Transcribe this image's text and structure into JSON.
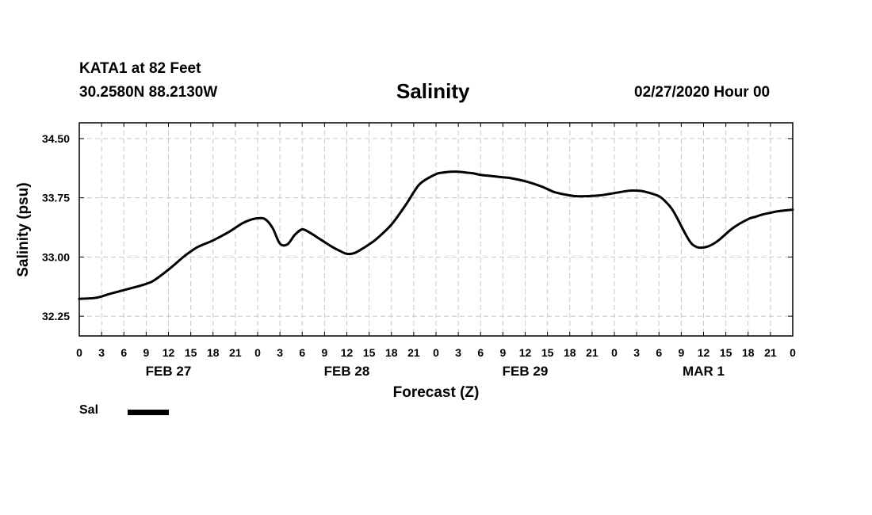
{
  "header": {
    "station": "KATA1 at 82 Feet",
    "coords": "30.2580N 88.2130W",
    "title": "Salinity",
    "issued": "02/27/2020 Hour 00"
  },
  "legend": {
    "label": "Sal",
    "color": "#000000"
  },
  "chart_data": {
    "type": "line",
    "title": "Salinity",
    "xlabel": "Forecast (Z)",
    "ylabel": "Salinity (psu)",
    "x_unit": "hours since 02/27/2020 00Z",
    "xlim": [
      0,
      96
    ],
    "ylim": [
      32.0,
      34.7
    ],
    "yticks": [
      32.25,
      33.0,
      33.75,
      34.5
    ],
    "ytick_labels": [
      "32.25",
      "33.00",
      "33.75",
      "34.50"
    ],
    "xticks": [
      0,
      3,
      6,
      9,
      12,
      15,
      18,
      21,
      24,
      27,
      30,
      33,
      36,
      39,
      42,
      45,
      48,
      51,
      54,
      57,
      60,
      63,
      66,
      69,
      72,
      75,
      78,
      81,
      84,
      87,
      90,
      93,
      96
    ],
    "xtick_labels": [
      "0",
      "3",
      "6",
      "9",
      "12",
      "15",
      "18",
      "21",
      "0",
      "3",
      "6",
      "9",
      "12",
      "15",
      "18",
      "21",
      "0",
      "3",
      "6",
      "9",
      "12",
      "15",
      "18",
      "21",
      "0",
      "3",
      "6",
      "9",
      "12",
      "15",
      "18",
      "21",
      "0"
    ],
    "day_labels": [
      {
        "x": 12,
        "label": "FEB 27"
      },
      {
        "x": 36,
        "label": "FEB 28"
      },
      {
        "x": 60,
        "label": "FEB 29"
      },
      {
        "x": 84,
        "label": "MAR 1"
      }
    ],
    "grid": true,
    "legend_position": "bottom-left",
    "series": [
      {
        "name": "Sal",
        "color": "#000000",
        "x": [
          0,
          2,
          3,
          4,
          6,
          8,
          9,
          10,
          12,
          14,
          15,
          16,
          18,
          20,
          21,
          22,
          23,
          24,
          25,
          26,
          27,
          28,
          29,
          30,
          31,
          32,
          33,
          34,
          35,
          36,
          37,
          38,
          39,
          40,
          42,
          44,
          45,
          46,
          48,
          49,
          50,
          51,
          52,
          53,
          54,
          55,
          56,
          57,
          58,
          60,
          62,
          63,
          64,
          66,
          67,
          68,
          70,
          72,
          74,
          75,
          76,
          78,
          79,
          80,
          82,
          83,
          84,
          85,
          86,
          88,
          90,
          91,
          92,
          93,
          94,
          96
        ],
        "y": [
          32.47,
          32.48,
          32.5,
          32.53,
          32.58,
          32.63,
          32.66,
          32.7,
          32.84,
          33.0,
          33.07,
          33.13,
          33.21,
          33.31,
          33.37,
          33.43,
          33.47,
          33.49,
          33.48,
          33.37,
          33.17,
          33.16,
          33.28,
          33.35,
          33.31,
          33.25,
          33.19,
          33.13,
          33.08,
          33.04,
          33.05,
          33.1,
          33.16,
          33.23,
          33.41,
          33.67,
          33.82,
          33.94,
          34.05,
          34.07,
          34.08,
          34.08,
          34.07,
          34.06,
          34.04,
          34.03,
          34.02,
          34.01,
          34.0,
          33.96,
          33.9,
          33.86,
          33.82,
          33.78,
          33.77,
          33.77,
          33.78,
          33.81,
          33.84,
          33.84,
          33.83,
          33.77,
          33.69,
          33.57,
          33.22,
          33.13,
          33.12,
          33.15,
          33.21,
          33.37,
          33.48,
          33.51,
          33.54,
          33.56,
          33.58,
          33.6
        ]
      }
    ]
  }
}
